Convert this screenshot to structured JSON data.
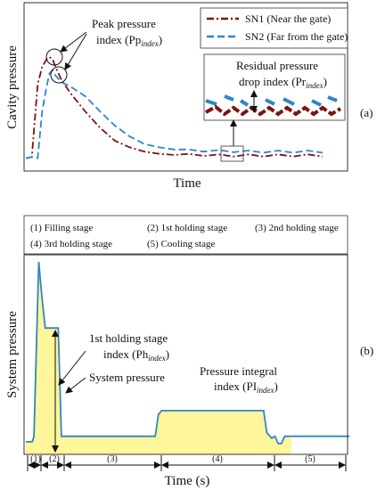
{
  "chart_data": [
    {
      "panel": "(a)",
      "type": "line",
      "xlabel": "Time",
      "ylabel": "Cavity pressure",
      "x": [
        0.0,
        0.02,
        0.04,
        0.055,
        0.07,
        0.08,
        0.09,
        0.1,
        0.12,
        0.15,
        0.2,
        0.25,
        0.3,
        0.35,
        0.4,
        0.45,
        0.5,
        0.55,
        0.6,
        0.65,
        0.7,
        0.75,
        0.8,
        0.85,
        0.9,
        0.95,
        1.0
      ],
      "series": [
        {
          "name": "SN1 (Near the gate)",
          "color": "#7a1515",
          "dash": "long-dash-dot",
          "values": [
            0.02,
            0.03,
            0.7,
            0.86,
            0.93,
            0.95,
            0.93,
            0.86,
            0.74,
            0.62,
            0.45,
            0.3,
            0.18,
            0.12,
            0.08,
            0.06,
            0.05,
            0.05,
            0.05,
            0.045,
            0.045,
            0.045,
            0.045,
            0.045,
            0.045,
            0.045,
            0.045
          ]
        },
        {
          "name": "SN2 (Far from the gate)",
          "color": "#2e86c8",
          "dash": "dashed",
          "values": [
            0.02,
            0.03,
            0.02,
            0.45,
            0.68,
            0.8,
            0.83,
            0.78,
            0.72,
            0.68,
            0.59,
            0.45,
            0.32,
            0.22,
            0.15,
            0.12,
            0.1,
            0.09,
            0.09,
            0.085,
            0.085,
            0.08,
            0.08,
            0.08,
            0.08,
            0.08,
            0.08
          ]
        }
      ],
      "annotations": {
        "peak_line1": "Peak pressure",
        "peak_line2": "index (Pp",
        "peak_sub": "index",
        "peak_end": ")",
        "residual_line1": "Residual pressure",
        "residual_line2": "drop index (Pr",
        "residual_sub": "index",
        "residual_end": ")"
      },
      "grid": false,
      "legend": "top-right"
    },
    {
      "panel": "(b)",
      "type": "area",
      "xlabel": "Time (s)",
      "ylabel": "System pressure",
      "x": [
        0.0,
        0.02,
        0.025,
        0.04,
        0.05,
        0.06,
        0.065,
        0.08,
        0.09,
        0.1,
        0.105,
        0.11,
        0.12,
        0.15,
        0.2,
        0.25,
        0.3,
        0.35,
        0.4,
        0.41,
        0.42,
        0.45,
        0.5,
        0.55,
        0.6,
        0.65,
        0.7,
        0.735,
        0.745,
        0.76,
        0.77,
        0.78,
        0.79,
        0.8,
        0.82,
        0.85,
        0.9,
        0.95,
        1.0
      ],
      "series": [
        {
          "name": "System pressure",
          "color": "#2e86c8",
          "fill": "#fff59a",
          "values": [
            0.02,
            0.02,
            0.05,
            1.0,
            0.8,
            0.64,
            0.64,
            0.64,
            0.64,
            0.64,
            0.35,
            0.05,
            0.05,
            0.05,
            0.05,
            0.05,
            0.05,
            0.05,
            0.05,
            0.17,
            0.19,
            0.19,
            0.19,
            0.19,
            0.19,
            0.19,
            0.19,
            0.19,
            0.07,
            0.04,
            0.05,
            0.01,
            0.01,
            0.05,
            0.05,
            0.05,
            0.05,
            0.05,
            0.05
          ]
        }
      ],
      "stage_legend": [
        "(1)  Filling stage",
        "(2)  1st holding stage",
        "(3)  2nd holding stage",
        "(4)  3rd holding stage",
        "(5)   Cooling stage"
      ],
      "stage_labels": [
        "(1)",
        "(2)",
        "(3)",
        "(4)",
        "(5)"
      ],
      "annotations": {
        "holding_line1": "1st holding stage",
        "holding_line2": "index (Ph",
        "holding_sub": "index",
        "holding_end": ")",
        "system": "System pressure",
        "integral_line1": "Pressure integral",
        "integral_line2": "index (PI",
        "integral_sub": "index",
        "integral_end": ")"
      },
      "grid": false
    }
  ]
}
